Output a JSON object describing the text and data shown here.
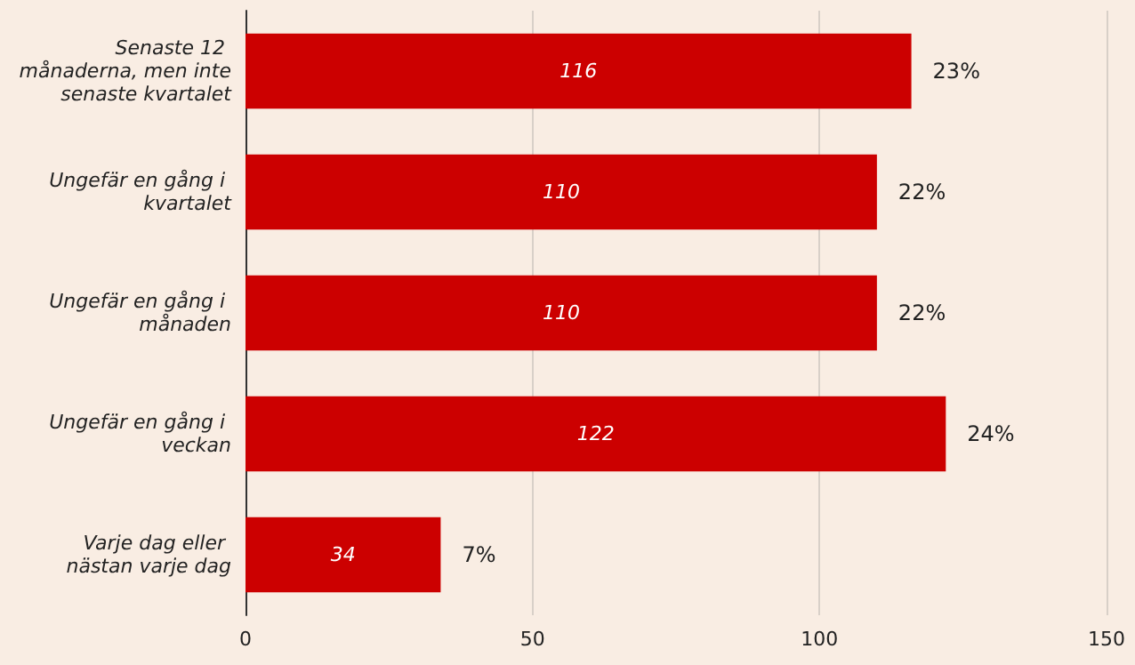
{
  "chart_data": {
    "type": "bar",
    "orientation": "horizontal",
    "categories": [
      "Senaste 12 månaderna, men inte senaste kvartalet",
      "Ungefär en gång i kvartalet",
      "Ungefär en gång i månaden",
      "Ungefär en gång i veckan",
      "Varje dag eller nästan varje dag"
    ],
    "values": [
      116,
      110,
      110,
      122,
      34
    ],
    "color": "#cc0000",
    "data_labels": true,
    "xlim": [
      0,
      150
    ],
    "xticks": [
      0,
      50,
      100,
      150
    ],
    "grid": "x",
    "annotations": [
      {
        "text": "23%",
        "x": 116,
        "y": "Senaste 12 månaderna, men inte senaste kvartalet"
      },
      {
        "text": "22%",
        "x": 110,
        "y": "Ungefär en gång i kvartalet"
      },
      {
        "text": "22%",
        "x": 110,
        "y": "Ungefär en gång i månaden"
      },
      {
        "text": "24%",
        "x": 122,
        "y": "Ungefär en gång i veckan"
      },
      {
        "text": "7%",
        "x": 34,
        "y": "Varje dag eller nästan varje dag"
      }
    ]
  }
}
